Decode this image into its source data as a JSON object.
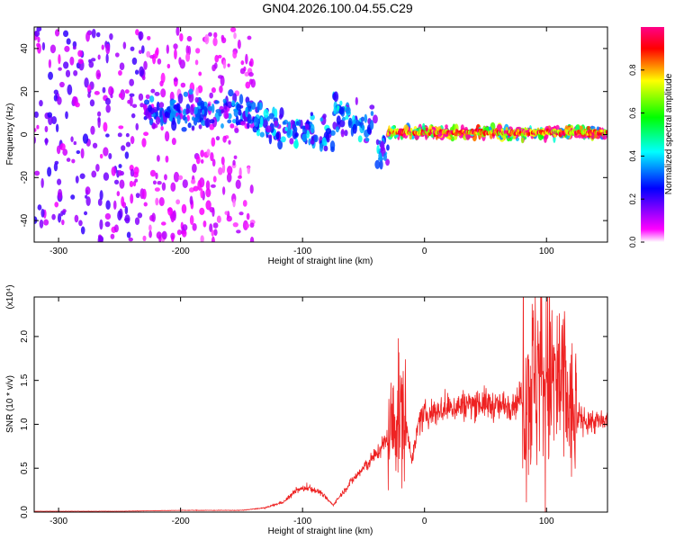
{
  "title": "GN04.2026.100.04.55.C29",
  "chart_data": [
    {
      "type": "heatmap",
      "xlabel": "Height of straight line (km)",
      "ylabel": "Frequency (Hz)",
      "xlim": [
        -320,
        150
      ],
      "ylim": [
        -50,
        50
      ],
      "xticks": [
        -300,
        -200,
        -100,
        0,
        100
      ],
      "yticks": [
        -40,
        -20,
        0,
        20,
        40
      ],
      "colorbar": {
        "label": "Normalized spectral amplitude",
        "range": [
          0.0,
          1.0
        ],
        "ticks": [
          0.0,
          0.2,
          0.4,
          0.6,
          0.8
        ],
        "colormap": [
          "#ffffff",
          "#ff00ff",
          "#0000ff",
          "#00ffff",
          "#00ff00",
          "#ffff00",
          "#ff0000",
          "#ff00aa"
        ]
      },
      "grid": false,
      "regions": [
        {
          "x_range": [
            -320,
            -230
          ],
          "freq_range": [
            -50,
            50
          ],
          "amplitude": 0.15
        },
        {
          "x_range": [
            -230,
            -140
          ],
          "freq_range": [
            -50,
            50
          ],
          "amplitude": 0.08
        },
        {
          "x_range": [
            -230,
            -140
          ],
          "freq_center": 10,
          "amplitude": 0.25
        },
        {
          "x_range": [
            -140,
            -30
          ],
          "freq_center": 0,
          "amplitude": 0.3
        },
        {
          "x_range": [
            -30,
            150
          ],
          "freq_center": 1,
          "amplitude": 0.8
        }
      ]
    },
    {
      "type": "line",
      "xlabel": "Height of straight line (km)",
      "ylabel": "SNR (10 * v/v)",
      "y_multiplier": "(x10⁴)",
      "xlim": [
        -320,
        150
      ],
      "ylim": [
        0,
        2.45
      ],
      "xticks": [
        -300,
        -200,
        -100,
        0,
        100
      ],
      "yticks": [
        0.0,
        0.5,
        1.0,
        1.5,
        2.0
      ],
      "line_color": "#ee2222",
      "series": [
        {
          "x": [
            -320,
            -250,
            -200,
            -150,
            -130,
            -115,
            -105,
            -95,
            -85,
            -75,
            -60,
            -50,
            -40,
            -30,
            -25,
            -20,
            -15,
            -10,
            -5,
            0,
            10,
            25,
            45,
            60,
            75,
            85,
            95,
            105,
            115,
            120,
            130,
            150
          ],
          "y": [
            0.01,
            0.01,
            0.02,
            0.02,
            0.05,
            0.12,
            0.25,
            0.28,
            0.22,
            0.08,
            0.35,
            0.5,
            0.65,
            0.85,
            1.0,
            1.15,
            1.0,
            0.6,
            1.0,
            1.1,
            1.15,
            1.2,
            1.25,
            1.2,
            1.25,
            1.4,
            1.6,
            1.5,
            1.4,
            1.1,
            1.05,
            1.02
          ]
        }
      ]
    }
  ]
}
